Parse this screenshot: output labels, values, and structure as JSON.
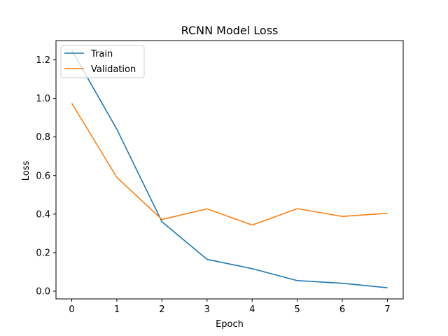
{
  "chart_data": {
    "type": "line",
    "title": "RCNN Model Loss",
    "xlabel": "Epoch",
    "ylabel": "Loss",
    "x": [
      0,
      1,
      2,
      3,
      4,
      5,
      6,
      7
    ],
    "xlim": [
      -0.35,
      7.35
    ],
    "ylim": [
      -0.04,
      1.3
    ],
    "xticks": [
      0,
      1,
      2,
      3,
      4,
      5,
      6,
      7
    ],
    "yticks": [
      0.0,
      0.2,
      0.4,
      0.6,
      0.8,
      1.0,
      1.2
    ],
    "grid": false,
    "legend_position": "top-left",
    "series": [
      {
        "name": "Train",
        "color": "#1f77b4",
        "values": [
          1.25,
          0.84,
          0.36,
          0.165,
          0.117,
          0.055,
          0.041,
          0.018
        ]
      },
      {
        "name": "Validation",
        "color": "#ff7f0e",
        "values": [
          0.975,
          0.59,
          0.372,
          0.427,
          0.343,
          0.428,
          0.388,
          0.404
        ]
      }
    ]
  }
}
